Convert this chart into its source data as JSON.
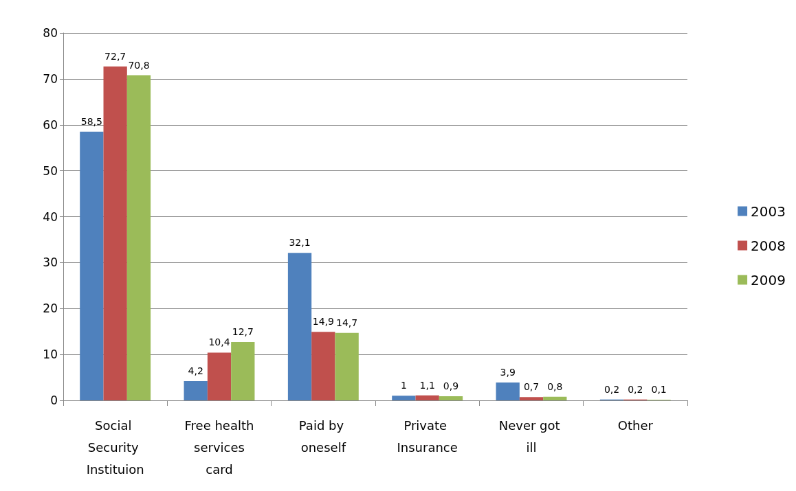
{
  "chart_data": {
    "type": "bar",
    "categories": [
      "Social Security Instituion",
      "Free health services card",
      "Paid by oneself",
      "Private Insurance",
      "Never got ill",
      "Other"
    ],
    "series": [
      {
        "name": "2003",
        "color": "#4f81bd",
        "values": [
          58.5,
          4.2,
          32.1,
          1,
          3.9,
          0.2
        ],
        "value_labels": [
          "58,5",
          "4,2",
          "32,1",
          "1",
          "3,9",
          "0,2"
        ]
      },
      {
        "name": "2008",
        "color": "#c0504d",
        "values": [
          72.7,
          10.4,
          14.9,
          1.1,
          0.7,
          0.2
        ],
        "value_labels": [
          "72,7",
          "10,4",
          "14,9",
          "1,1",
          "0,7",
          "0,2"
        ]
      },
      {
        "name": "2009",
        "color": "#9bbb59",
        "values": [
          70.8,
          12.7,
          14.7,
          0.9,
          0.8,
          0.1
        ],
        "value_labels": [
          "70,8",
          "12,7",
          "14,7",
          "0,9",
          "0,8",
          "0,1"
        ]
      }
    ],
    "ylim": [
      0,
      80
    ],
    "yticks": [
      0,
      10,
      20,
      30,
      40,
      50,
      60,
      70,
      80
    ],
    "grid": "y",
    "legend": "right"
  }
}
